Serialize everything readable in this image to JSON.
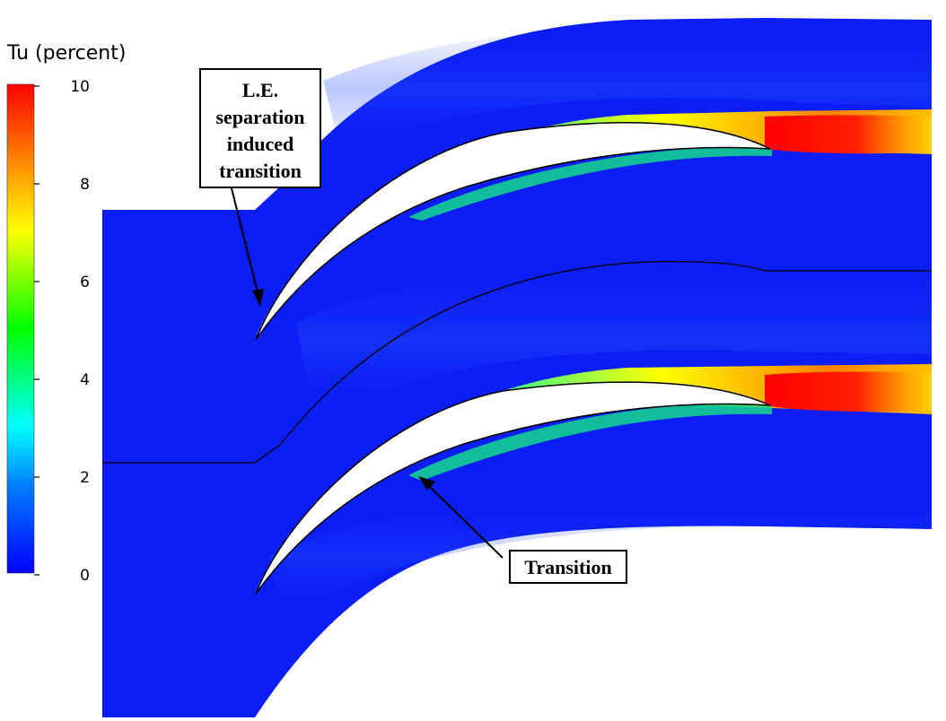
{
  "legend": {
    "title": "Tu  (percent)",
    "ticks": [
      "10",
      "8",
      "6",
      "4",
      "2",
      "0"
    ],
    "min": 0,
    "max": 10,
    "colors": [
      "#0000ff",
      "#0080ff",
      "#00ffff",
      "#00ff00",
      "#ffff00",
      "#ff8000",
      "#ff0000"
    ]
  },
  "annotations": {
    "le_separation": [
      "L.E.",
      "separation",
      "induced",
      "transition"
    ],
    "transition": "Transition"
  },
  "colors": {
    "freestream": "#0a1ef5",
    "blade": "#ffffff",
    "wake_core": "#ff1a00"
  }
}
